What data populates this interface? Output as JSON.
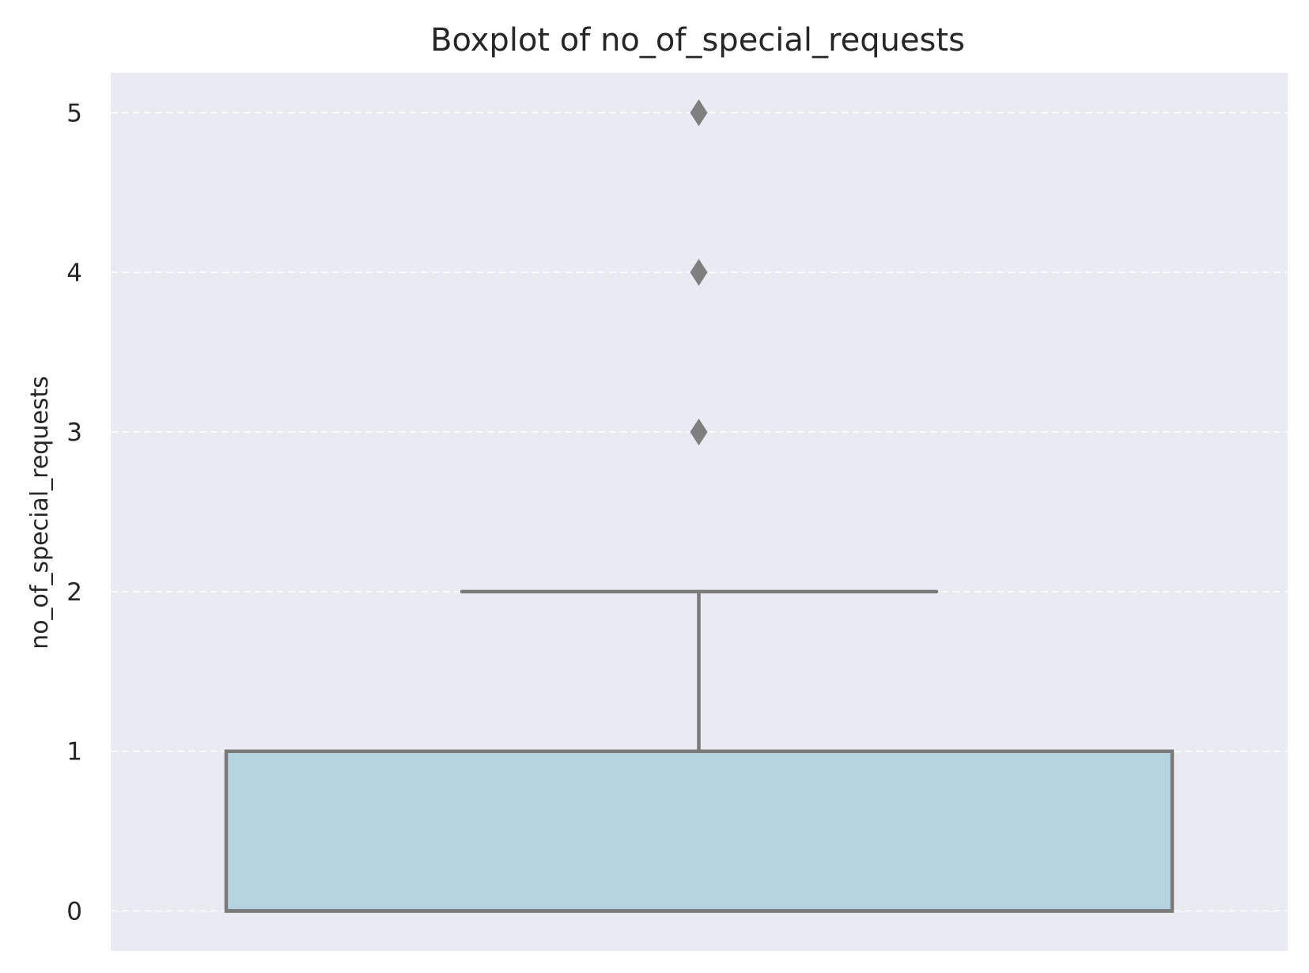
{
  "chart_data": {
    "type": "box",
    "title": "Boxplot of no_of_special_requests",
    "xlabel": "",
    "ylabel": "no_of_special_requests",
    "ylim": [
      -0.25,
      5.25
    ],
    "yticks": [
      0,
      1,
      2,
      3,
      4,
      5
    ],
    "grid": true,
    "grid_style": "dashed",
    "orientation": "vertical",
    "box": {
      "whisker_low": 0,
      "q1": 0,
      "median": 0,
      "q3": 1,
      "whisker_high": 2,
      "outliers": [
        3,
        4,
        5
      ]
    },
    "colors": {
      "plot_background": "#eaeaf2",
      "box_fill": "#b4d4df",
      "box_edge": "#7a7a7a",
      "grid": "#ffffff",
      "outlier": "#7f7f7f",
      "text": "#262626"
    }
  }
}
